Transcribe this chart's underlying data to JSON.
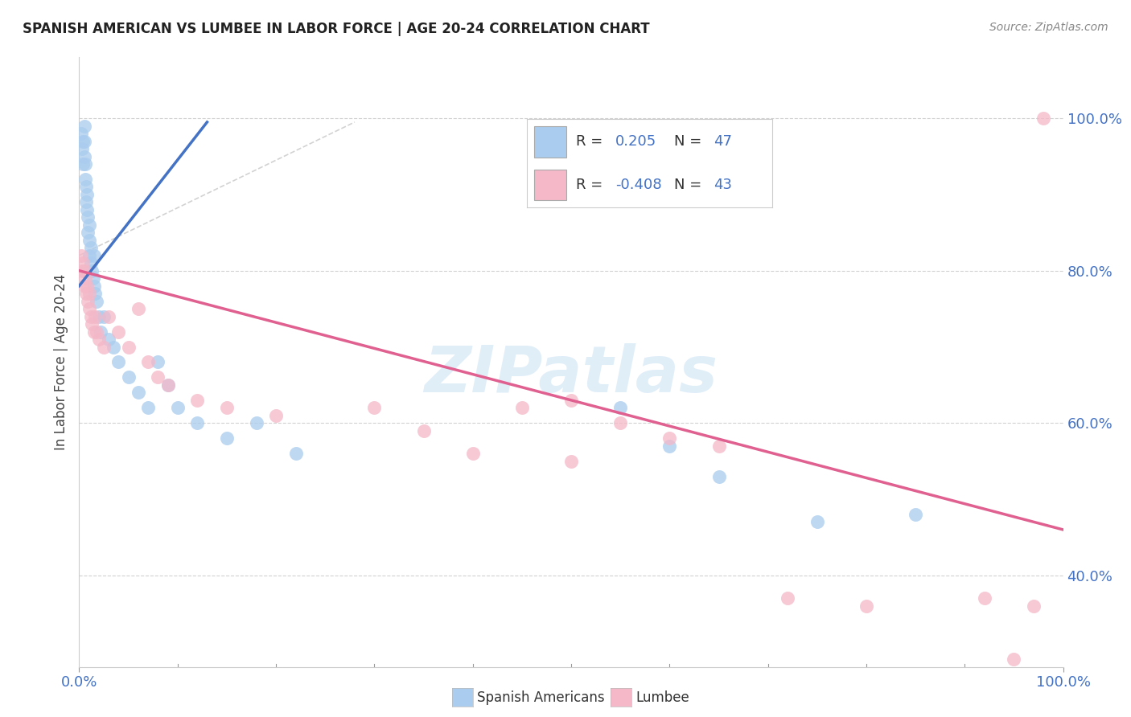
{
  "title": "SPANISH AMERICAN VS LUMBEE IN LABOR FORCE | AGE 20-24 CORRELATION CHART",
  "source": "Source: ZipAtlas.com",
  "ylabel": "In Labor Force | Age 20-24",
  "xlim": [
    0.0,
    1.0
  ],
  "ylim": [
    0.28,
    1.08
  ],
  "xtick_positions": [
    0.0,
    1.0
  ],
  "xticklabels": [
    "0.0%",
    "100.0%"
  ],
  "ytick_positions": [
    0.4,
    0.6,
    0.8,
    1.0
  ],
  "yticklabels": [
    "40.0%",
    "60.0%",
    "80.0%",
    "100.0%"
  ],
  "grid_color": "#cccccc",
  "background_color": "#ffffff",
  "spanish_color": "#aaccee",
  "lumbee_color": "#f4b8c8",
  "spanish_R": "0.205",
  "spanish_N": "47",
  "lumbee_R": "-0.408",
  "lumbee_N": "43",
  "stat_color": "#4472c4",
  "spanish_line_color": "#4472c4",
  "lumbee_line_color": "#e06090",
  "dash_line_color": "#c0c0c0",
  "watermark": "ZIPatlas",
  "legend_box_color": "#aaccee",
  "legend_pink_color": "#f4b8c8",
  "sa_x": [
    0.002,
    0.003,
    0.004,
    0.004,
    0.005,
    0.005,
    0.005,
    0.006,
    0.006,
    0.007,
    0.007,
    0.008,
    0.008,
    0.009,
    0.009,
    0.01,
    0.01,
    0.01,
    0.012,
    0.012,
    0.013,
    0.014,
    0.015,
    0.015,
    0.016,
    0.018,
    0.02,
    0.022,
    0.025,
    0.03,
    0.035,
    0.04,
    0.05,
    0.06,
    0.07,
    0.08,
    0.09,
    0.1,
    0.12,
    0.15,
    0.18,
    0.22,
    0.55,
    0.6,
    0.65,
    0.75,
    0.85
  ],
  "sa_y": [
    0.98,
    0.96,
    0.97,
    0.94,
    0.99,
    0.97,
    0.95,
    0.92,
    0.94,
    0.91,
    0.89,
    0.88,
    0.9,
    0.87,
    0.85,
    0.84,
    0.86,
    0.82,
    0.83,
    0.81,
    0.8,
    0.79,
    0.82,
    0.78,
    0.77,
    0.76,
    0.74,
    0.72,
    0.74,
    0.71,
    0.7,
    0.68,
    0.66,
    0.64,
    0.62,
    0.68,
    0.65,
    0.62,
    0.6,
    0.58,
    0.6,
    0.56,
    0.62,
    0.57,
    0.53,
    0.47,
    0.48
  ],
  "lb_x": [
    0.002,
    0.003,
    0.004,
    0.005,
    0.005,
    0.006,
    0.007,
    0.008,
    0.009,
    0.01,
    0.01,
    0.012,
    0.013,
    0.015,
    0.016,
    0.018,
    0.02,
    0.025,
    0.03,
    0.04,
    0.05,
    0.06,
    0.07,
    0.08,
    0.09,
    0.12,
    0.15,
    0.2,
    0.3,
    0.35,
    0.4,
    0.45,
    0.5,
    0.55,
    0.65,
    0.72,
    0.8,
    0.92,
    0.95,
    0.97,
    0.98,
    0.5,
    0.6
  ],
  "lb_y": [
    0.82,
    0.8,
    0.81,
    0.78,
    0.8,
    0.79,
    0.77,
    0.78,
    0.76,
    0.75,
    0.77,
    0.74,
    0.73,
    0.72,
    0.74,
    0.72,
    0.71,
    0.7,
    0.74,
    0.72,
    0.7,
    0.75,
    0.68,
    0.66,
    0.65,
    0.63,
    0.62,
    0.61,
    0.62,
    0.59,
    0.56,
    0.62,
    0.63,
    0.6,
    0.57,
    0.37,
    0.36,
    0.37,
    0.29,
    0.36,
    1.0,
    0.55,
    0.58
  ],
  "blue_line_x": [
    0.0,
    0.13
  ],
  "blue_line_y": [
    0.78,
    0.995
  ],
  "pink_line_x": [
    0.0,
    1.0
  ],
  "pink_line_y": [
    0.8,
    0.46
  ],
  "dash_line_x": [
    0.0,
    0.28
  ],
  "dash_line_y": [
    0.82,
    0.995
  ]
}
